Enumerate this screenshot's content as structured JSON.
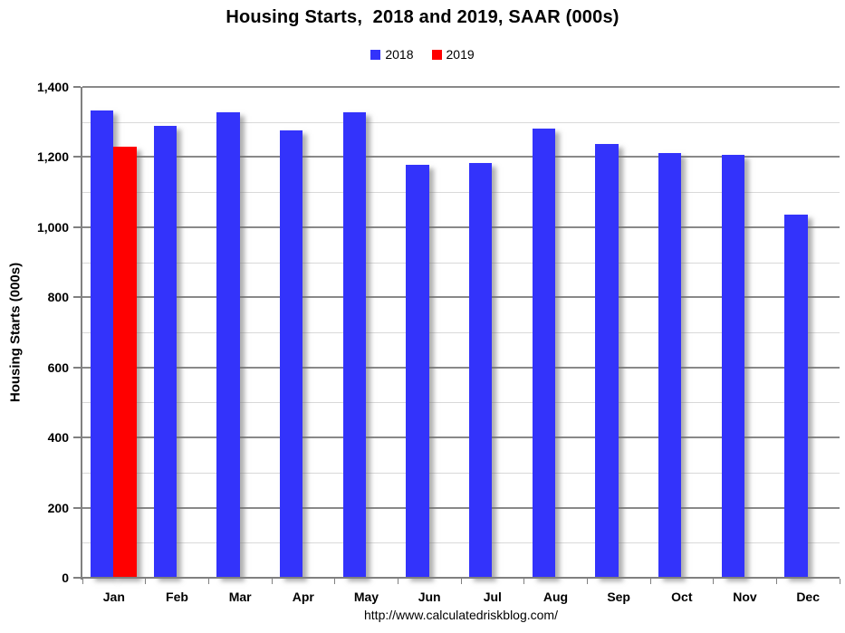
{
  "title": "Housing Starts,  2018 and 2019, SAAR (000s)",
  "footer": {
    "url": "http://www.calculatedriskblog.com/"
  },
  "colors": {
    "background": "#FFFFFF",
    "text": "#000000",
    "axis": "#808080",
    "major_grid": "#898989",
    "minor_grid": "#D9D9D9",
    "series_2018": "#3333FB",
    "series_2019": "#FF0000"
  },
  "chart_data": {
    "type": "bar",
    "title": "Housing Starts,  2018 and 2019, SAAR (000s)",
    "xlabel": "",
    "ylabel": "Housing Starts (000s)",
    "categories": [
      "Jan",
      "Feb",
      "Mar",
      "Apr",
      "May",
      "Jun",
      "Jul",
      "Aug",
      "Sep",
      "Oct",
      "Nov",
      "Dec"
    ],
    "series": [
      {
        "name": "2018",
        "color": "#3333FB",
        "values": [
          1334,
          1290,
          1327,
          1276,
          1329,
          1177,
          1184,
          1280,
          1237,
          1211,
          1206,
          1037
        ]
      },
      {
        "name": "2019",
        "color": "#FF0000",
        "values": [
          1230,
          null,
          null,
          null,
          null,
          null,
          null,
          null,
          null,
          null,
          null,
          null
        ]
      }
    ],
    "ylim": [
      0,
      1400
    ],
    "ytick_values": [
      0,
      200,
      400,
      600,
      800,
      1000,
      1200,
      1400
    ],
    "ytick_labels": [
      "0",
      "200",
      "400",
      "600",
      "800",
      "1,000",
      "1,200",
      "1,400"
    ],
    "minor_grid_step": 100,
    "major_grid_step": 200,
    "grid": true,
    "legend_position": "top",
    "bar_shadow": true
  }
}
